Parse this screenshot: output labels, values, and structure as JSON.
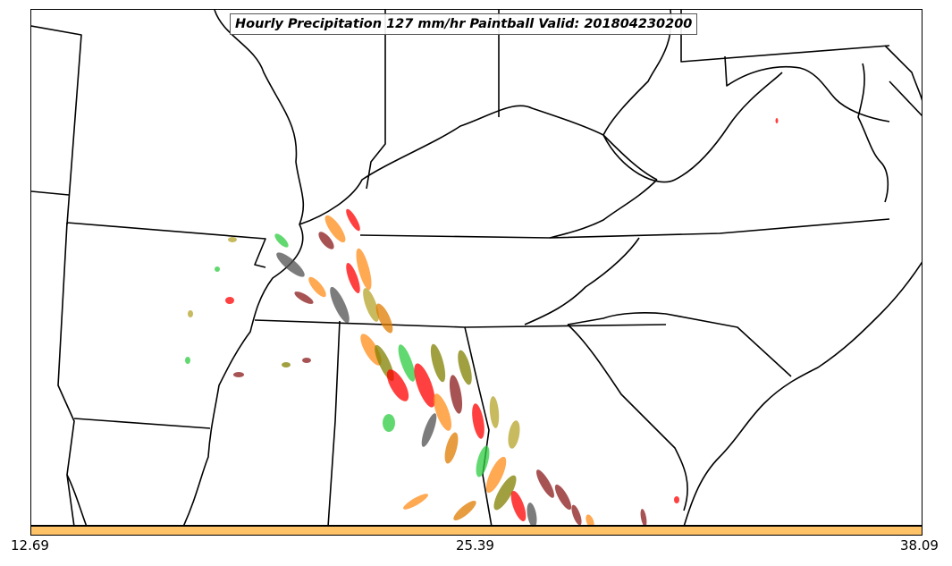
{
  "map": {
    "title": "Hourly Precipitation 127 mm/hr Paintball Valid: 201804230200",
    "region": "Southeastern United States",
    "background_color": "#ffffff",
    "border_color": "#000000"
  },
  "colorbar": {
    "color": "#ffc266",
    "ticks": [
      "12.69",
      "25.39",
      "38.09"
    ]
  },
  "paintball_colors": [
    "#ff0000",
    "#ff8c1a",
    "#2ecc40",
    "#8b1a1a",
    "#808000",
    "#505050",
    "#b5a32a",
    "#e07b00"
  ]
}
